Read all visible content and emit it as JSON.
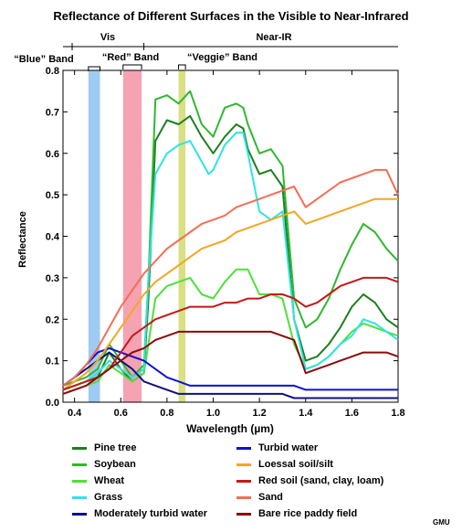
{
  "chart_data": {
    "type": "line",
    "title": "Reflectance of Different Surfaces in the Visible to Near-Infrared",
    "xlabel": "Wavelength (µm)",
    "ylabel": "Reflectance",
    "xlim": [
      0.35,
      1.8
    ],
    "ylim": [
      0,
      0.8
    ],
    "xticks": [
      0.4,
      0.6,
      0.8,
      1.0,
      1.2,
      1.4,
      1.6,
      1.8
    ],
    "xtick_labels": [
      "0.4",
      "0.6",
      "0.8",
      "1.0",
      "1.2",
      "1.4",
      "1.6",
      "1.8"
    ],
    "yticks": [
      0.0,
      0.1,
      0.2,
      0.3,
      0.4,
      0.5,
      0.6,
      0.7,
      0.8
    ],
    "ytick_labels": [
      "0.0",
      "0.1",
      "0.2",
      "0.3",
      "0.4",
      "0.5",
      "0.6",
      "0.7",
      "0.8"
    ],
    "grid": false,
    "regions": [
      {
        "label": "Vis",
        "start": 0.35,
        "end": 0.7
      },
      {
        "label": "Near-IR",
        "start": 0.7,
        "end": 1.8
      }
    ],
    "bands": [
      {
        "label": "“Blue” Band",
        "start": 0.46,
        "end": 0.51,
        "color": "#9ecbf1"
      },
      {
        "label": "“Red” Band",
        "start": 0.61,
        "end": 0.69,
        "color": "#f5a2b2"
      },
      {
        "label": "“Veggie” Band",
        "start": 0.85,
        "end": 0.88,
        "color": "#d8e083"
      }
    ],
    "legend_position": "bottom",
    "series": [
      {
        "name": "Pine tree",
        "color": "#1e7f1e",
        "points": [
          [
            0.35,
            0.03
          ],
          [
            0.4,
            0.04
          ],
          [
            0.45,
            0.05
          ],
          [
            0.5,
            0.06
          ],
          [
            0.55,
            0.12
          ],
          [
            0.6,
            0.08
          ],
          [
            0.65,
            0.05
          ],
          [
            0.7,
            0.07
          ],
          [
            0.72,
            0.25
          ],
          [
            0.75,
            0.63
          ],
          [
            0.8,
            0.68
          ],
          [
            0.85,
            0.67
          ],
          [
            0.9,
            0.69
          ],
          [
            0.95,
            0.64
          ],
          [
            1.0,
            0.6
          ],
          [
            1.05,
            0.64
          ],
          [
            1.1,
            0.67
          ],
          [
            1.13,
            0.66
          ],
          [
            1.15,
            0.61
          ],
          [
            1.2,
            0.55
          ],
          [
            1.25,
            0.56
          ],
          [
            1.3,
            0.52
          ],
          [
            1.35,
            0.2
          ],
          [
            1.4,
            0.1
          ],
          [
            1.45,
            0.11
          ],
          [
            1.5,
            0.14
          ],
          [
            1.55,
            0.18
          ],
          [
            1.6,
            0.23
          ],
          [
            1.65,
            0.26
          ],
          [
            1.7,
            0.24
          ],
          [
            1.75,
            0.2
          ],
          [
            1.8,
            0.18
          ]
        ]
      },
      {
        "name": "Soybean",
        "color": "#2fb82f",
        "points": [
          [
            0.35,
            0.04
          ],
          [
            0.4,
            0.05
          ],
          [
            0.45,
            0.06
          ],
          [
            0.5,
            0.08
          ],
          [
            0.55,
            0.14
          ],
          [
            0.6,
            0.1
          ],
          [
            0.65,
            0.06
          ],
          [
            0.7,
            0.09
          ],
          [
            0.72,
            0.3
          ],
          [
            0.75,
            0.73
          ],
          [
            0.8,
            0.74
          ],
          [
            0.85,
            0.72
          ],
          [
            0.9,
            0.75
          ],
          [
            0.95,
            0.67
          ],
          [
            1.0,
            0.64
          ],
          [
            1.05,
            0.71
          ],
          [
            1.1,
            0.72
          ],
          [
            1.13,
            0.71
          ],
          [
            1.15,
            0.67
          ],
          [
            1.2,
            0.6
          ],
          [
            1.25,
            0.61
          ],
          [
            1.3,
            0.57
          ],
          [
            1.35,
            0.25
          ],
          [
            1.4,
            0.18
          ],
          [
            1.45,
            0.2
          ],
          [
            1.5,
            0.25
          ],
          [
            1.55,
            0.32
          ],
          [
            1.6,
            0.38
          ],
          [
            1.65,
            0.43
          ],
          [
            1.7,
            0.41
          ],
          [
            1.75,
            0.37
          ],
          [
            1.8,
            0.34
          ]
        ]
      },
      {
        "name": "Wheat",
        "color": "#4fe03a",
        "points": [
          [
            0.35,
            0.02
          ],
          [
            0.4,
            0.03
          ],
          [
            0.45,
            0.04
          ],
          [
            0.5,
            0.05
          ],
          [
            0.55,
            0.09
          ],
          [
            0.6,
            0.07
          ],
          [
            0.65,
            0.05
          ],
          [
            0.7,
            0.07
          ],
          [
            0.75,
            0.25
          ],
          [
            0.8,
            0.28
          ],
          [
            0.85,
            0.29
          ],
          [
            0.9,
            0.3
          ],
          [
            0.95,
            0.26
          ],
          [
            1.0,
            0.25
          ],
          [
            1.05,
            0.29
          ],
          [
            1.1,
            0.32
          ],
          [
            1.15,
            0.32
          ],
          [
            1.2,
            0.26
          ],
          [
            1.25,
            0.26
          ],
          [
            1.3,
            0.25
          ],
          [
            1.35,
            0.14
          ],
          [
            1.4,
            0.08
          ],
          [
            1.45,
            0.09
          ],
          [
            1.5,
            0.11
          ],
          [
            1.55,
            0.14
          ],
          [
            1.6,
            0.17
          ],
          [
            1.65,
            0.19
          ],
          [
            1.7,
            0.18
          ],
          [
            1.75,
            0.17
          ],
          [
            1.8,
            0.16
          ]
        ]
      },
      {
        "name": "Grass",
        "color": "#30e3e3",
        "points": [
          [
            0.35,
            0.03
          ],
          [
            0.4,
            0.04
          ],
          [
            0.45,
            0.05
          ],
          [
            0.5,
            0.07
          ],
          [
            0.55,
            0.1
          ],
          [
            0.6,
            0.08
          ],
          [
            0.65,
            0.06
          ],
          [
            0.7,
            0.08
          ],
          [
            0.72,
            0.3
          ],
          [
            0.75,
            0.55
          ],
          [
            0.8,
            0.6
          ],
          [
            0.85,
            0.62
          ],
          [
            0.9,
            0.63
          ],
          [
            0.95,
            0.58
          ],
          [
            0.98,
            0.55
          ],
          [
            1.0,
            0.56
          ],
          [
            1.05,
            0.62
          ],
          [
            1.1,
            0.65
          ],
          [
            1.13,
            0.65
          ],
          [
            1.15,
            0.6
          ],
          [
            1.2,
            0.46
          ],
          [
            1.25,
            0.44
          ],
          [
            1.3,
            0.46
          ],
          [
            1.35,
            0.2
          ],
          [
            1.4,
            0.08
          ],
          [
            1.45,
            0.09
          ],
          [
            1.5,
            0.11
          ],
          [
            1.55,
            0.14
          ],
          [
            1.6,
            0.16
          ],
          [
            1.65,
            0.2
          ],
          [
            1.7,
            0.19
          ],
          [
            1.75,
            0.17
          ],
          [
            1.8,
            0.15
          ]
        ]
      },
      {
        "name": "Moderately turbid water",
        "color": "#101080",
        "points": [
          [
            0.35,
            0.04
          ],
          [
            0.4,
            0.06
          ],
          [
            0.45,
            0.08
          ],
          [
            0.5,
            0.1
          ],
          [
            0.55,
            0.12
          ],
          [
            0.6,
            0.1
          ],
          [
            0.65,
            0.08
          ],
          [
            0.7,
            0.05
          ],
          [
            0.75,
            0.04
          ],
          [
            0.8,
            0.03
          ],
          [
            0.85,
            0.02
          ],
          [
            0.9,
            0.02
          ],
          [
            1.0,
            0.02
          ],
          [
            1.1,
            0.02
          ],
          [
            1.2,
            0.02
          ],
          [
            1.3,
            0.02
          ],
          [
            1.35,
            0.01
          ],
          [
            1.4,
            0.01
          ],
          [
            1.5,
            0.01
          ],
          [
            1.6,
            0.01
          ],
          [
            1.7,
            0.01
          ],
          [
            1.8,
            0.01
          ]
        ]
      },
      {
        "name": "Turbid water",
        "color": "#1010d0",
        "points": [
          [
            0.35,
            0.04
          ],
          [
            0.4,
            0.06
          ],
          [
            0.45,
            0.09
          ],
          [
            0.5,
            0.12
          ],
          [
            0.55,
            0.13
          ],
          [
            0.6,
            0.12
          ],
          [
            0.65,
            0.11
          ],
          [
            0.7,
            0.1
          ],
          [
            0.75,
            0.08
          ],
          [
            0.8,
            0.06
          ],
          [
            0.85,
            0.05
          ],
          [
            0.9,
            0.04
          ],
          [
            1.0,
            0.04
          ],
          [
            1.1,
            0.04
          ],
          [
            1.2,
            0.04
          ],
          [
            1.3,
            0.04
          ],
          [
            1.35,
            0.04
          ],
          [
            1.4,
            0.03
          ],
          [
            1.5,
            0.03
          ],
          [
            1.6,
            0.03
          ],
          [
            1.7,
            0.03
          ],
          [
            1.8,
            0.03
          ]
        ]
      },
      {
        "name": "Loessal soil/silt",
        "color": "#f5a623",
        "points": [
          [
            0.35,
            0.03
          ],
          [
            0.4,
            0.05
          ],
          [
            0.45,
            0.07
          ],
          [
            0.5,
            0.1
          ],
          [
            0.55,
            0.14
          ],
          [
            0.6,
            0.18
          ],
          [
            0.65,
            0.22
          ],
          [
            0.7,
            0.26
          ],
          [
            0.75,
            0.29
          ],
          [
            0.8,
            0.31
          ],
          [
            0.85,
            0.33
          ],
          [
            0.9,
            0.35
          ],
          [
            0.95,
            0.37
          ],
          [
            1.0,
            0.38
          ],
          [
            1.05,
            0.39
          ],
          [
            1.1,
            0.41
          ],
          [
            1.15,
            0.42
          ],
          [
            1.2,
            0.43
          ],
          [
            1.25,
            0.44
          ],
          [
            1.3,
            0.45
          ],
          [
            1.35,
            0.46
          ],
          [
            1.4,
            0.43
          ],
          [
            1.45,
            0.44
          ],
          [
            1.5,
            0.45
          ],
          [
            1.55,
            0.46
          ],
          [
            1.6,
            0.47
          ],
          [
            1.65,
            0.48
          ],
          [
            1.7,
            0.49
          ],
          [
            1.75,
            0.49
          ],
          [
            1.8,
            0.49
          ]
        ]
      },
      {
        "name": "Red soil (sand, clay, loam)",
        "color": "#c41818",
        "points": [
          [
            0.35,
            0.03
          ],
          [
            0.4,
            0.04
          ],
          [
            0.45,
            0.05
          ],
          [
            0.5,
            0.06
          ],
          [
            0.55,
            0.08
          ],
          [
            0.6,
            0.12
          ],
          [
            0.65,
            0.16
          ],
          [
            0.7,
            0.18
          ],
          [
            0.75,
            0.2
          ],
          [
            0.8,
            0.21
          ],
          [
            0.85,
            0.22
          ],
          [
            0.9,
            0.23
          ],
          [
            0.95,
            0.23
          ],
          [
            1.0,
            0.23
          ],
          [
            1.05,
            0.24
          ],
          [
            1.1,
            0.24
          ],
          [
            1.15,
            0.25
          ],
          [
            1.2,
            0.25
          ],
          [
            1.25,
            0.26
          ],
          [
            1.3,
            0.26
          ],
          [
            1.35,
            0.25
          ],
          [
            1.4,
            0.23
          ],
          [
            1.45,
            0.24
          ],
          [
            1.5,
            0.26
          ],
          [
            1.55,
            0.28
          ],
          [
            1.6,
            0.29
          ],
          [
            1.65,
            0.3
          ],
          [
            1.7,
            0.3
          ],
          [
            1.75,
            0.3
          ],
          [
            1.8,
            0.29
          ]
        ]
      },
      {
        "name": "Sand",
        "color": "#f46e55",
        "points": [
          [
            0.35,
            0.04
          ],
          [
            0.4,
            0.06
          ],
          [
            0.45,
            0.09
          ],
          [
            0.5,
            0.13
          ],
          [
            0.55,
            0.18
          ],
          [
            0.6,
            0.23
          ],
          [
            0.65,
            0.27
          ],
          [
            0.7,
            0.31
          ],
          [
            0.75,
            0.34
          ],
          [
            0.8,
            0.37
          ],
          [
            0.85,
            0.39
          ],
          [
            0.9,
            0.41
          ],
          [
            0.95,
            0.43
          ],
          [
            1.0,
            0.44
          ],
          [
            1.05,
            0.45
          ],
          [
            1.1,
            0.47
          ],
          [
            1.15,
            0.48
          ],
          [
            1.2,
            0.49
          ],
          [
            1.25,
            0.5
          ],
          [
            1.3,
            0.51
          ],
          [
            1.35,
            0.52
          ],
          [
            1.4,
            0.47
          ],
          [
            1.45,
            0.49
          ],
          [
            1.5,
            0.51
          ],
          [
            1.55,
            0.53
          ],
          [
            1.6,
            0.54
          ],
          [
            1.65,
            0.55
          ],
          [
            1.7,
            0.56
          ],
          [
            1.75,
            0.56
          ],
          [
            1.8,
            0.5
          ]
        ]
      },
      {
        "name": "Bare rice paddy field",
        "color": "#8b0a0a",
        "points": [
          [
            0.35,
            0.02
          ],
          [
            0.4,
            0.03
          ],
          [
            0.45,
            0.04
          ],
          [
            0.5,
            0.06
          ],
          [
            0.55,
            0.08
          ],
          [
            0.6,
            0.1
          ],
          [
            0.65,
            0.12
          ],
          [
            0.7,
            0.13
          ],
          [
            0.75,
            0.15
          ],
          [
            0.8,
            0.16
          ],
          [
            0.85,
            0.17
          ],
          [
            0.9,
            0.17
          ],
          [
            0.95,
            0.17
          ],
          [
            1.0,
            0.17
          ],
          [
            1.05,
            0.17
          ],
          [
            1.1,
            0.17
          ],
          [
            1.15,
            0.17
          ],
          [
            1.2,
            0.17
          ],
          [
            1.25,
            0.17
          ],
          [
            1.3,
            0.16
          ],
          [
            1.35,
            0.15
          ],
          [
            1.4,
            0.07
          ],
          [
            1.45,
            0.08
          ],
          [
            1.5,
            0.09
          ],
          [
            1.55,
            0.1
          ],
          [
            1.6,
            0.11
          ],
          [
            1.65,
            0.12
          ],
          [
            1.7,
            0.12
          ],
          [
            1.75,
            0.12
          ],
          [
            1.8,
            0.11
          ]
        ]
      }
    ]
  },
  "credit": "GMU"
}
